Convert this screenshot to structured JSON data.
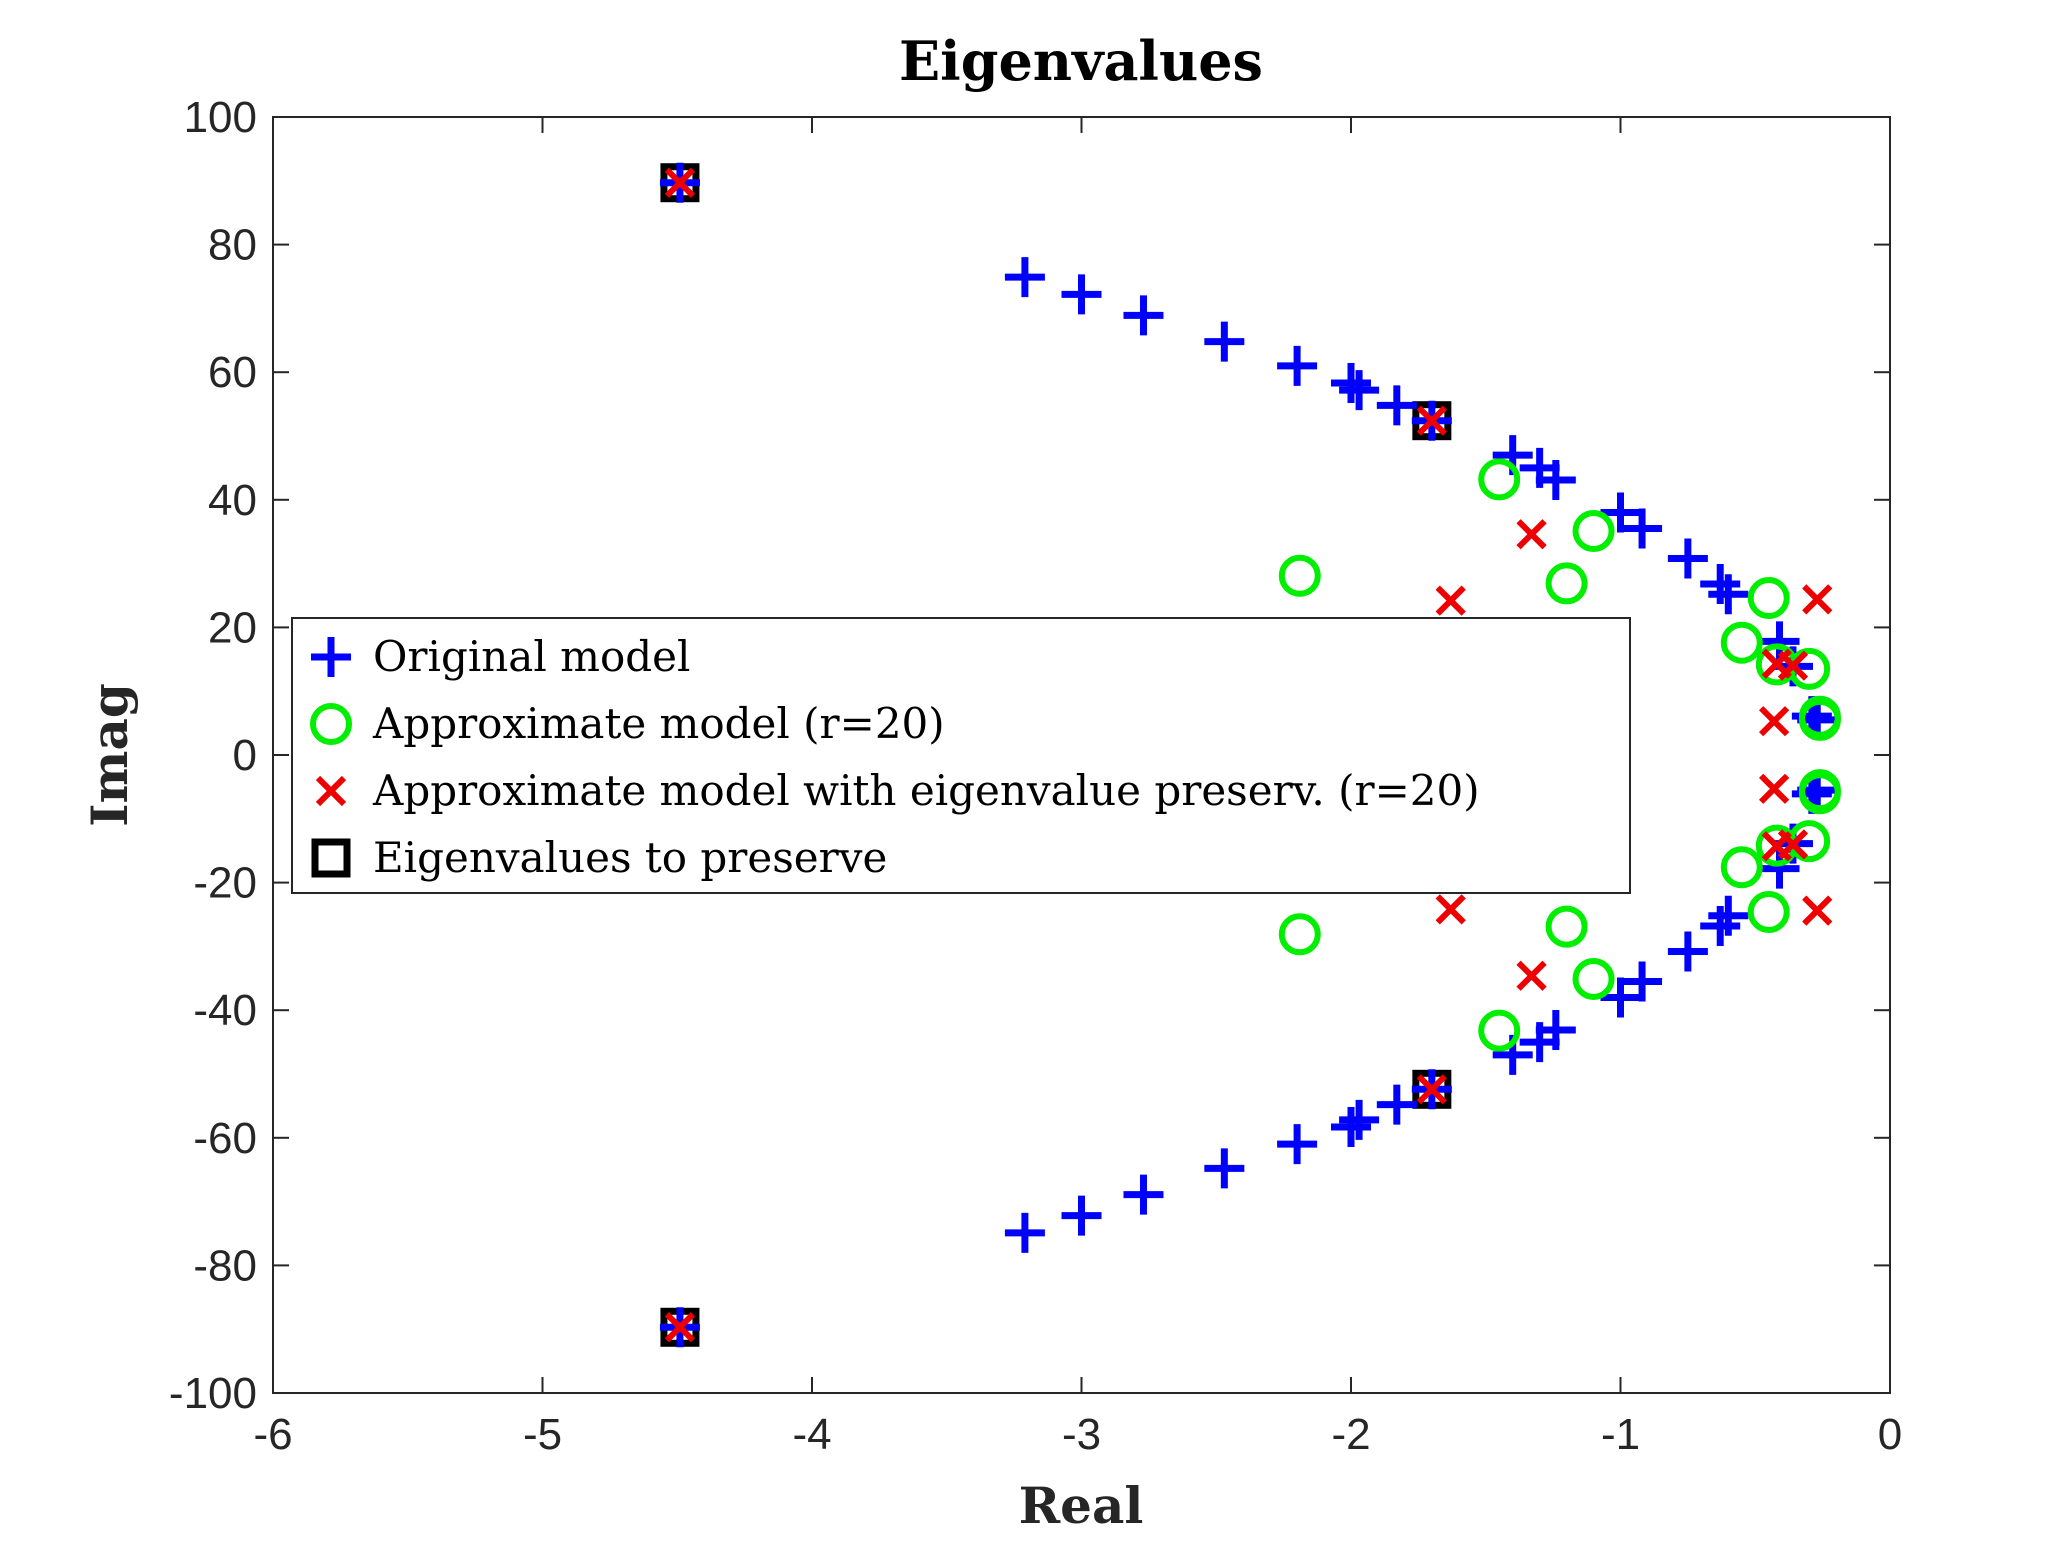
{
  "chart_data": {
    "type": "scatter",
    "title": "Eigenvalues",
    "xlabel": "Real",
    "ylabel": "Imag",
    "xlim": [
      -6,
      0
    ],
    "ylim": [
      -100,
      100
    ],
    "xticks": [
      -6,
      -5,
      -4,
      -3,
      -2,
      -1,
      0
    ],
    "yticks": [
      -100,
      -80,
      -60,
      -40,
      -20,
      0,
      20,
      40,
      60,
      80,
      100
    ],
    "grid": false,
    "legend_position": "center-left",
    "series": [
      {
        "name": "Original model",
        "marker": "plus",
        "color": "#0000ff",
        "points": [
          [
            -4.49,
            89.7
          ],
          [
            -3.21,
            74.9
          ],
          [
            -3.0,
            72.2
          ],
          [
            -2.77,
            68.9
          ],
          [
            -2.47,
            64.8
          ],
          [
            -2.2,
            61.0
          ],
          [
            -2.0,
            58.3
          ],
          [
            -1.97,
            57.2
          ],
          [
            -1.83,
            54.8
          ],
          [
            -1.7,
            52.4
          ],
          [
            -1.4,
            47.0
          ],
          [
            -1.3,
            45.0
          ],
          [
            -1.24,
            43.1
          ],
          [
            -1.0,
            38.0
          ],
          [
            -0.92,
            35.5
          ],
          [
            -0.75,
            30.8
          ],
          [
            -0.63,
            26.8
          ],
          [
            -0.6,
            25.2
          ],
          [
            -0.41,
            17.8
          ],
          [
            -0.36,
            13.9
          ],
          [
            -0.29,
            6.1
          ],
          [
            -0.27,
            5.5
          ],
          [
            -4.49,
            -89.7
          ],
          [
            -3.21,
            -74.9
          ],
          [
            -3.0,
            -72.2
          ],
          [
            -2.77,
            -68.9
          ],
          [
            -2.47,
            -64.8
          ],
          [
            -2.2,
            -61.0
          ],
          [
            -2.0,
            -58.3
          ],
          [
            -1.97,
            -57.2
          ],
          [
            -1.83,
            -54.8
          ],
          [
            -1.7,
            -52.4
          ],
          [
            -1.4,
            -47.0
          ],
          [
            -1.3,
            -45.0
          ],
          [
            -1.24,
            -43.1
          ],
          [
            -1.0,
            -38.0
          ],
          [
            -0.92,
            -35.5
          ],
          [
            -0.75,
            -30.8
          ],
          [
            -0.63,
            -26.8
          ],
          [
            -0.6,
            -25.2
          ],
          [
            -0.41,
            -17.8
          ],
          [
            -0.36,
            -13.9
          ],
          [
            -0.29,
            -6.1
          ],
          [
            -0.27,
            -5.5
          ]
        ]
      },
      {
        "name": "Approximate model (r=20)",
        "marker": "circle",
        "color": "#00ee00",
        "points": [
          [
            -1.45,
            43.2
          ],
          [
            -2.19,
            28.1
          ],
          [
            -1.2,
            26.9
          ],
          [
            -1.1,
            35.1
          ],
          [
            -0.45,
            24.6
          ],
          [
            -0.55,
            17.6
          ],
          [
            -0.42,
            14.2
          ],
          [
            -0.3,
            13.5
          ],
          [
            -0.26,
            6.0
          ],
          [
            -0.26,
            5.5
          ],
          [
            -1.45,
            -43.2
          ],
          [
            -2.19,
            -28.1
          ],
          [
            -1.2,
            -26.9
          ],
          [
            -1.1,
            -35.1
          ],
          [
            -0.45,
            -24.6
          ],
          [
            -0.55,
            -17.6
          ],
          [
            -0.42,
            -14.2
          ],
          [
            -0.3,
            -13.5
          ],
          [
            -0.26,
            -6.0
          ],
          [
            -0.26,
            -5.5
          ]
        ]
      },
      {
        "name": "Approximate model with eigenvalue preserv. (r=20)",
        "marker": "x",
        "color": "#ee0000",
        "points": [
          [
            -4.49,
            89.7
          ],
          [
            -1.7,
            52.4
          ],
          [
            -1.33,
            34.6
          ],
          [
            -1.63,
            24.2
          ],
          [
            -0.27,
            24.4
          ],
          [
            -0.43,
            5.3
          ],
          [
            -0.36,
            14.0
          ],
          [
            -0.42,
            14.3
          ],
          [
            -4.49,
            -89.7
          ],
          [
            -1.7,
            -52.4
          ],
          [
            -1.33,
            -34.6
          ],
          [
            -1.63,
            -24.2
          ],
          [
            -0.27,
            -24.4
          ],
          [
            -0.43,
            -5.3
          ],
          [
            -0.36,
            -14.0
          ],
          [
            -0.42,
            -14.3
          ]
        ]
      },
      {
        "name": "Eigenvalues to preserve",
        "marker": "square",
        "color": "#000000",
        "points": [
          [
            -4.49,
            89.7
          ],
          [
            -1.7,
            52.4
          ],
          [
            -4.49,
            -89.7
          ],
          [
            -1.7,
            -52.4
          ]
        ]
      }
    ]
  }
}
